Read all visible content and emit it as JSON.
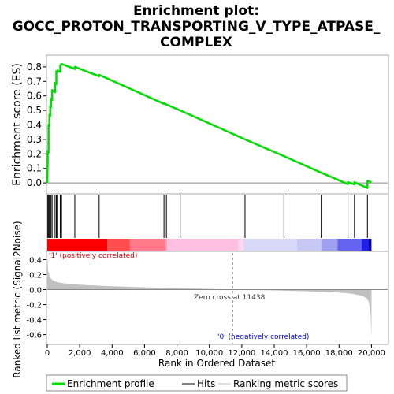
{
  "chart_data": {
    "type": "line",
    "title_lines": [
      "Enrichment plot:",
      "GOCC_PROTON_TRANSPORTING_V_TYPE_ATPASE_",
      "COMPLEX"
    ],
    "xlabel": "Rank in Ordered Dataset",
    "xlim": [
      0,
      21000
    ],
    "x_ticks": [
      0,
      2000,
      4000,
      6000,
      8000,
      10000,
      12000,
      14000,
      16000,
      18000,
      20000
    ],
    "x_tick_labels": [
      "0",
      "2,000",
      "4,000",
      "6,000",
      "8,000",
      "10,000",
      "12,000",
      "14,000",
      "16,000",
      "18,000",
      "20,000"
    ],
    "panels": {
      "enrichment": {
        "ylabel": "Enrichment score (ES)",
        "ylim": [
          -0.07,
          0.87
        ],
        "y_ticks": [
          0.0,
          0.1,
          0.2,
          0.3,
          0.4,
          0.5,
          0.6,
          0.7,
          0.8
        ],
        "y_tick_labels": [
          "0.0",
          "0.1",
          "0.2",
          "0.3",
          "0.4",
          "0.5",
          "0.6",
          "0.7",
          "0.8"
        ],
        "series": [
          {
            "name": "Enrichment profile",
            "color": "#00dd00",
            "x": [
              0,
              30,
              30,
              80,
              80,
              130,
              130,
              180,
              180,
              230,
              230,
              300,
              300,
              480,
              480,
              560,
              560,
              620,
              620,
              800,
              800,
              880,
              880,
              1700,
              1700,
              3200,
              3200,
              7200,
              7200,
              7350,
              7350,
              8200,
              8200,
              12200,
              12200,
              14600,
              14600,
              16900,
              16900,
              18550,
              18550,
              18950,
              18950,
              19750,
              19750,
              20000
            ],
            "y": [
              0.0,
              0.155,
              0.22,
              0.21,
              0.4,
              0.39,
              0.47,
              0.46,
              0.53,
              0.52,
              0.58,
              0.57,
              0.64,
              0.625,
              0.69,
              0.68,
              0.77,
              0.765,
              0.775,
              0.765,
              0.81,
              0.82,
              0.82,
              0.785,
              0.8,
              0.735,
              0.745,
              0.545,
              0.55,
              0.54,
              0.54,
              0.5,
              0.5,
              0.3,
              0.3,
              0.185,
              0.185,
              0.07,
              0.07,
              -0.008,
              0.005,
              -0.01,
              0.005,
              -0.035,
              0.015,
              0.005
            ]
          }
        ]
      },
      "hits": {
        "positions": [
          30,
          80,
          130,
          180,
          230,
          300,
          480,
          560,
          620,
          800,
          880,
          1700,
          3200,
          7200,
          7350,
          8200,
          12200,
          14600,
          16900,
          18550,
          18950,
          19750
        ]
      },
      "ranked_metric": {
        "ylabel": "Ranked list metric (Signal2Noise)",
        "ylim": [
          -0.72,
          0.5
        ],
        "y_ticks": [
          0.4,
          0.2,
          0.0,
          -0.2,
          -0.4,
          -0.6
        ],
        "y_tick_labels": [
          "0.4",
          "0.2",
          "0.0",
          "-0.2",
          "-0.4",
          "-0.6"
        ],
        "x": [
          0,
          50,
          150,
          300,
          600,
          1000,
          2000,
          4000,
          7000,
          9500,
          11438,
          13500,
          16000,
          18000,
          18800,
          19300,
          19600,
          19750,
          19850,
          19950,
          20000
        ],
        "y": [
          0.48,
          0.25,
          0.17,
          0.13,
          0.1,
          0.085,
          0.065,
          0.045,
          0.025,
          0.012,
          0.0,
          -0.008,
          -0.022,
          -0.04,
          -0.055,
          -0.075,
          -0.1,
          -0.13,
          -0.17,
          -0.35,
          -0.65
        ],
        "fill_color": "#c0c0c0",
        "zero_cross_rank": 11438,
        "annotations": {
          "zero_cross": "Zero cross at 11438",
          "positive": "'1' (positively correlated)",
          "negative": "'0' (negatively correlated)"
        },
        "annotation_colors": {
          "positive": "#dd0000",
          "negative": "#0000dd"
        }
      }
    },
    "gradient_bar": {
      "stops": [
        {
          "x": 0,
          "color": "#ff0000"
        },
        {
          "x": 3700,
          "color": "#ff4d4d"
        },
        {
          "x": 5100,
          "color": "#ff7a8a"
        },
        {
          "x": 7300,
          "color": "#ff9aba"
        },
        {
          "x": 7400,
          "color": "#ffbfe0"
        },
        {
          "x": 11800,
          "color": "#ffd6f0"
        },
        {
          "x": 12100,
          "color": "#d8d8f8"
        },
        {
          "x": 15400,
          "color": "#c8c8f4"
        },
        {
          "x": 16900,
          "color": "#a0a0f0"
        },
        {
          "x": 17900,
          "color": "#6464f0"
        },
        {
          "x": 19400,
          "color": "#2020e8"
        },
        {
          "x": 19800,
          "color": "#0000b0"
        }
      ]
    },
    "legend": {
      "placement": "bottom",
      "entries": [
        {
          "label": "Enrichment profile",
          "color": "#00dd00"
        },
        {
          "label": "Hits",
          "color": "#000000"
        },
        {
          "label": "Ranking metric scores",
          "color": "#c0c0c0"
        }
      ]
    }
  }
}
